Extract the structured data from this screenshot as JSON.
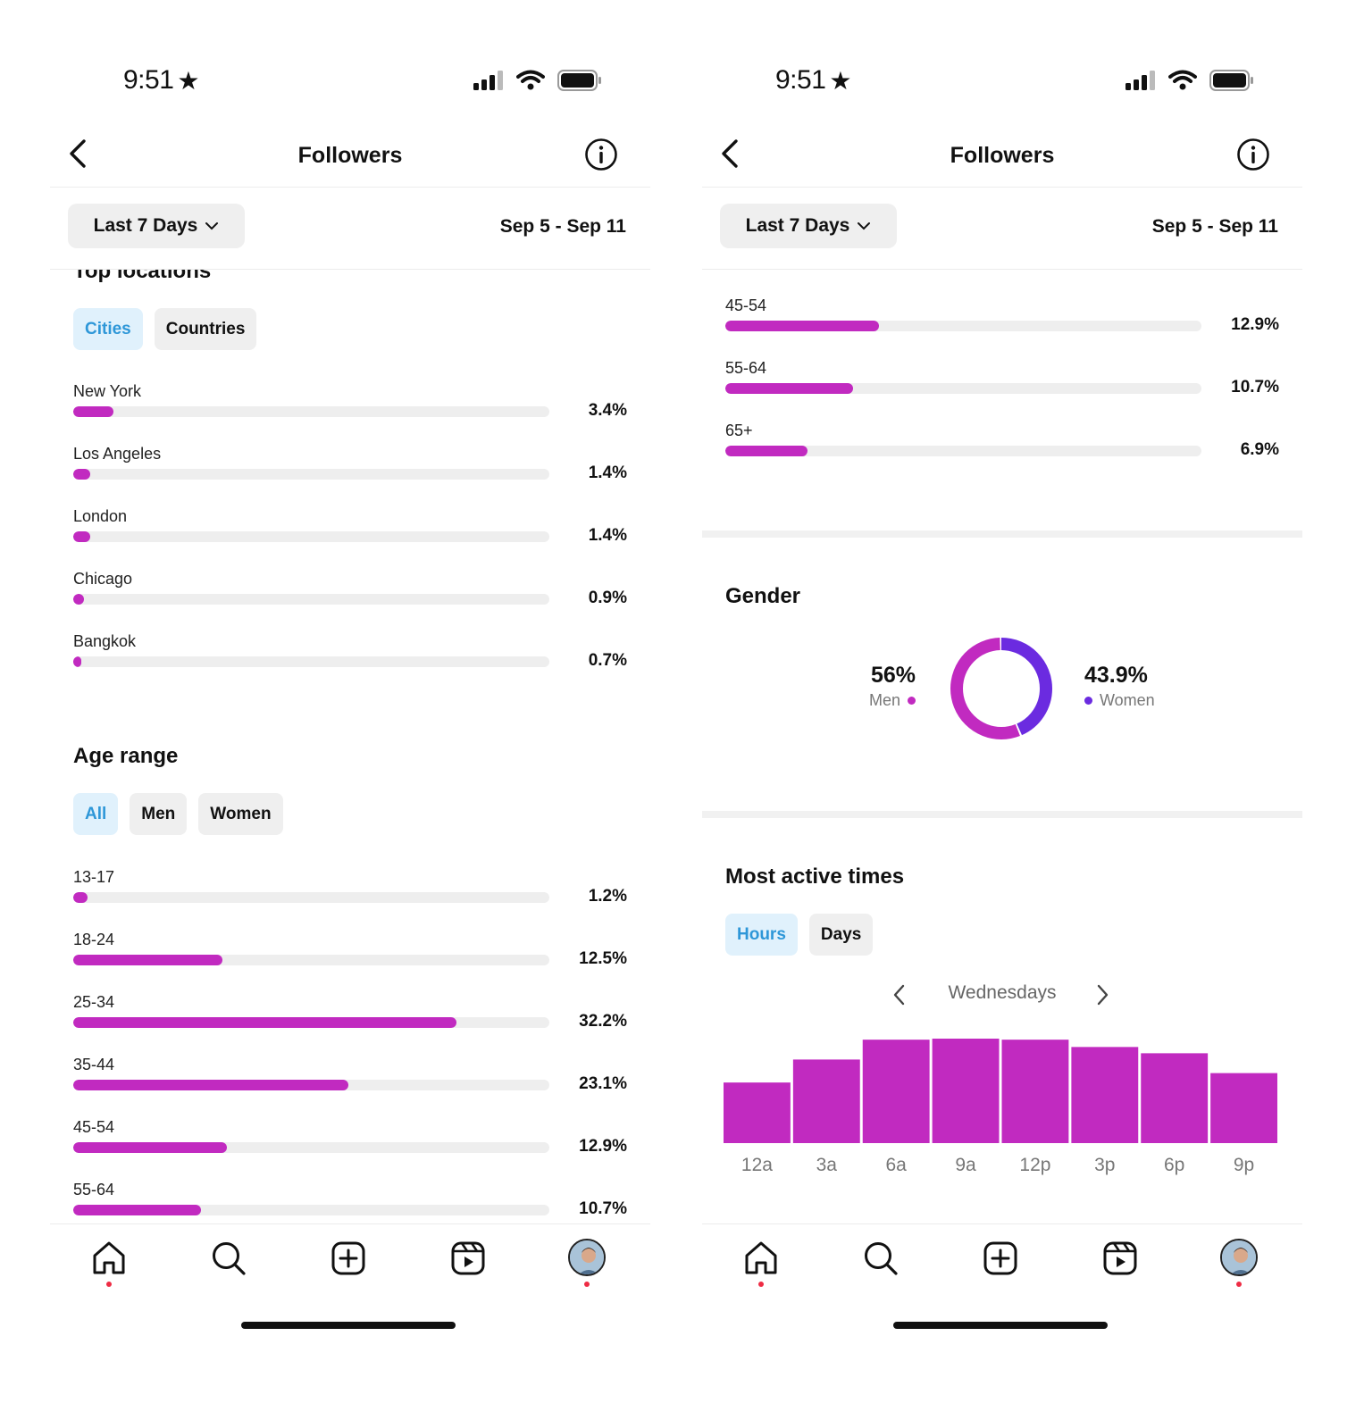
{
  "status_bar": {
    "time": "9:51",
    "star": "★",
    "icons": [
      "signal-icon",
      "wifi-icon",
      "battery-icon"
    ]
  },
  "header": {
    "title": "Followers"
  },
  "filter": {
    "period": "Last 7 Days",
    "date_range": "Sep 5 - Sep 11"
  },
  "accent_color": "#c12ac0",
  "secondary_color": "#6b2be0",
  "chip_active_color": "#2e97d8",
  "left": {
    "top_locations": {
      "title": "Top locations",
      "chips": [
        {
          "label": "Cities",
          "active": true
        },
        {
          "label": "Countries",
          "active": false
        }
      ],
      "rows": [
        {
          "label": "New York",
          "value_text": "3.4%",
          "fraction": 0.034
        },
        {
          "label": "Los Angeles",
          "value_text": "1.4%",
          "fraction": 0.014
        },
        {
          "label": "London",
          "value_text": "1.4%",
          "fraction": 0.014
        },
        {
          "label": "Chicago",
          "value_text": "0.9%",
          "fraction": 0.009
        },
        {
          "label": "Bangkok",
          "value_text": "0.7%",
          "fraction": 0.007
        }
      ]
    },
    "age_range": {
      "title": "Age range",
      "chips": [
        {
          "label": "All",
          "active": true
        },
        {
          "label": "Men",
          "active": false
        },
        {
          "label": "Women",
          "active": false
        }
      ],
      "rows": [
        {
          "label": "13-17",
          "value_text": "1.2%",
          "fraction": 0.012
        },
        {
          "label": "18-24",
          "value_text": "12.5%",
          "fraction": 0.125
        },
        {
          "label": "25-34",
          "value_text": "32.2%",
          "fraction": 0.322
        },
        {
          "label": "35-44",
          "value_text": "23.1%",
          "fraction": 0.231
        },
        {
          "label": "45-54",
          "value_text": "12.9%",
          "fraction": 0.129
        },
        {
          "label": "55-64",
          "value_text": "10.7%",
          "fraction": 0.107
        }
      ]
    }
  },
  "right": {
    "age_rows": [
      {
        "label": "35-44",
        "value_text": "23.1%",
        "fraction": 0.231
      },
      {
        "label": "45-54",
        "value_text": "12.9%",
        "fraction": 0.129
      },
      {
        "label": "55-64",
        "value_text": "10.7%",
        "fraction": 0.107
      },
      {
        "label": "65+",
        "value_text": "6.9%",
        "fraction": 0.069
      }
    ],
    "gender": {
      "title": "Gender",
      "men": {
        "pct": "56%",
        "label": "Men",
        "value": 56
      },
      "women": {
        "pct": "43.9%",
        "label": "Women",
        "value": 43.9
      }
    },
    "most_active": {
      "title": "Most active times",
      "chips": [
        {
          "label": "Hours",
          "active": true
        },
        {
          "label": "Days",
          "active": false
        }
      ],
      "day": "Wednesdays"
    }
  },
  "chart_data": {
    "type": "bar",
    "categories": [
      "12a",
      "3a",
      "6a",
      "9a",
      "12p",
      "3p",
      "6p",
      "9p"
    ],
    "values": [
      58,
      80,
      99,
      100,
      99,
      92,
      86,
      67
    ],
    "xlabel": "",
    "ylabel": "",
    "ylim": [
      0,
      100
    ],
    "grid": false
  },
  "tabbar": {
    "items": [
      "home-icon",
      "search-icon",
      "create-icon",
      "reels-icon",
      "profile-avatar"
    ]
  }
}
